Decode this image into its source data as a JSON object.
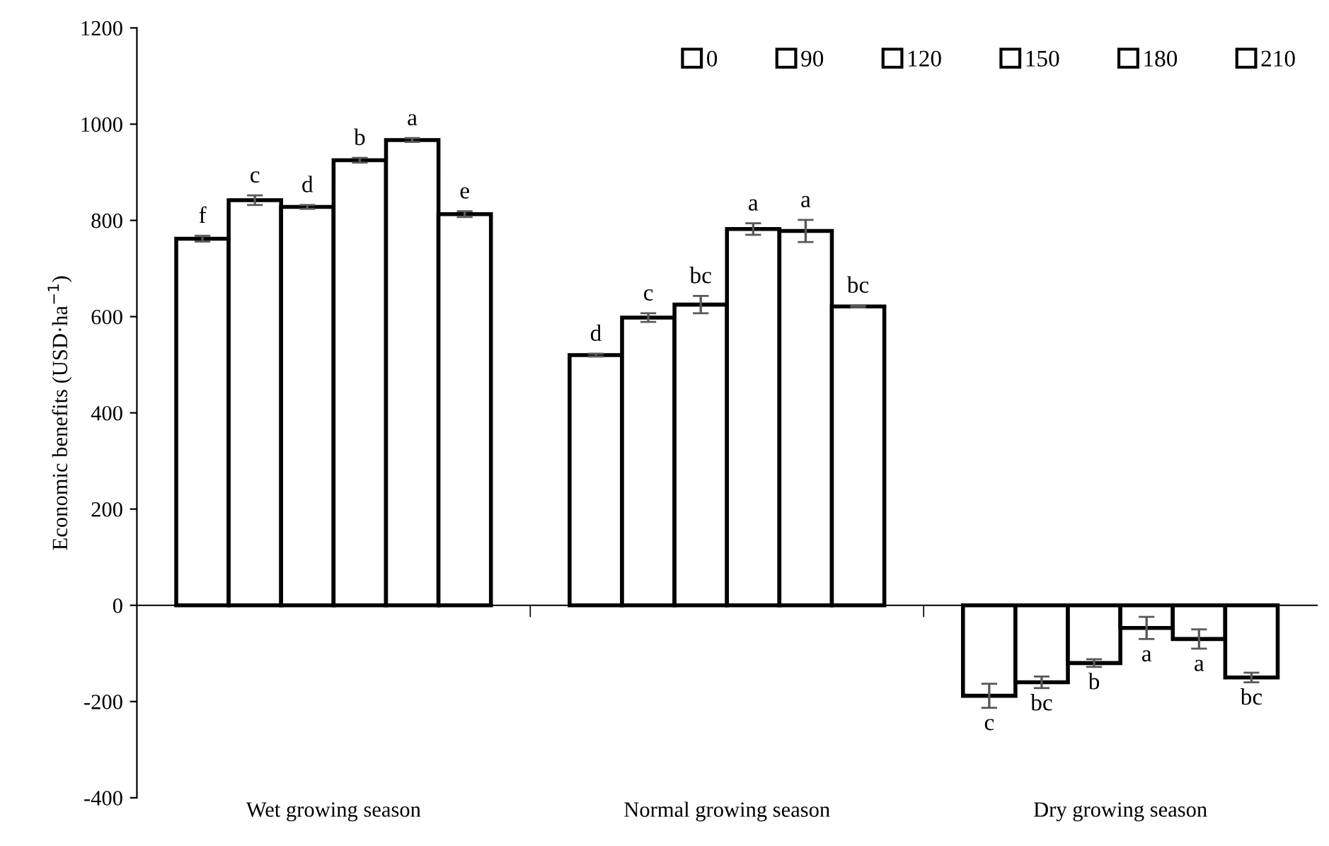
{
  "chart_data": {
    "type": "bar",
    "ylabel": "Economic benefits (USD·ha$^{−1}$)",
    "categories": [
      "Wet growing season",
      "Normal growing season",
      "Dry growing season"
    ],
    "series": [
      {
        "name": "0",
        "color": "#ffffff",
        "values": [
          762,
          520,
          -188
        ],
        "errors": [
          6,
          3,
          25
        ],
        "value_labels": [
          "f",
          "d",
          "c"
        ]
      },
      {
        "name": "90",
        "color": "#ffffff",
        "values": [
          842,
          598,
          -160
        ],
        "errors": [
          10,
          9,
          12
        ],
        "value_labels": [
          "c",
          "c",
          "bc"
        ]
      },
      {
        "name": "120",
        "color": "#ffffff",
        "values": [
          828,
          625,
          -120
        ],
        "errors": [
          4,
          18,
          8
        ],
        "value_labels": [
          "d",
          "bc",
          "b"
        ]
      },
      {
        "name": "150",
        "color": "#ffffff",
        "values": [
          925,
          782,
          -47
        ],
        "errors": [
          5,
          12,
          23
        ],
        "value_labels": [
          "b",
          "a",
          "a"
        ]
      },
      {
        "name": "180",
        "color": "#ffffff",
        "values": [
          967,
          778,
          -70
        ],
        "errors": [
          4,
          23,
          20
        ],
        "value_labels": [
          "a",
          "a",
          "a"
        ]
      },
      {
        "name": "210",
        "color": "#ffffff",
        "values": [
          813,
          621,
          -150
        ],
        "errors": [
          6,
          2,
          10
        ],
        "value_labels": [
          "e",
          "bc",
          "bc"
        ]
      }
    ],
    "ylim": [
      -400,
      1200
    ],
    "yticks": [
      {
        "value": -400,
        "label": "-400"
      },
      {
        "value": -200,
        "label": "-200"
      },
      0,
      200,
      400,
      600,
      800,
      1000,
      1200
    ],
    "legend": "top right"
  }
}
